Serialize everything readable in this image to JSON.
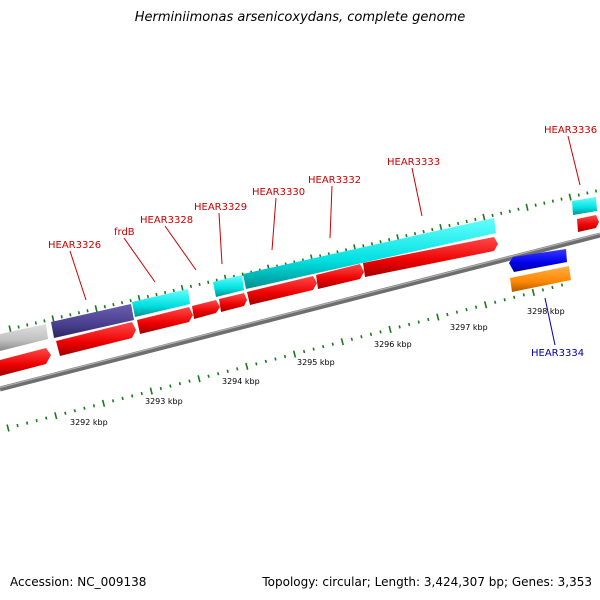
{
  "title": "Herminiimonas arsenicoxydans, complete genome",
  "footer": {
    "accession_label": "Accession: NC_009138",
    "summary_label": "Topology: circular; Length: 3,424,307 bp; Genes: 3,353"
  },
  "colors": {
    "backbone": "#808080",
    "tick": "#1a7a1a",
    "label_red": "#cc0000",
    "label_blue": "#0000aa",
    "cds_red": "#ff0000",
    "cds_cyan": "#00e0e0",
    "cds_purple": "#4a3f8f",
    "cds_grey": "#bdbdbd",
    "cds_blue": "#0000ee",
    "cds_orange": "#ff8800"
  },
  "scale": {
    "ticks": [
      {
        "label": "3292 kbp"
      },
      {
        "label": "3293 kbp"
      },
      {
        "label": "3294 kbp"
      },
      {
        "label": "3295 kbp"
      },
      {
        "label": "3296 kbp"
      },
      {
        "label": "3297 kbp"
      },
      {
        "label": "3298 kbp"
      }
    ]
  },
  "genes": [
    {
      "name": "HEAR3326",
      "color": "label_red"
    },
    {
      "name": "frdB",
      "color": "label_red"
    },
    {
      "name": "HEAR3328",
      "color": "label_red"
    },
    {
      "name": "HEAR3329",
      "color": "label_red"
    },
    {
      "name": "HEAR3330",
      "color": "label_red"
    },
    {
      "name": "HEAR3332",
      "color": "label_red"
    },
    {
      "name": "HEAR3333",
      "color": "label_red"
    },
    {
      "name": "HEAR3336",
      "color": "label_red"
    },
    {
      "name": "HEAR3334",
      "color": "label_blue"
    }
  ]
}
